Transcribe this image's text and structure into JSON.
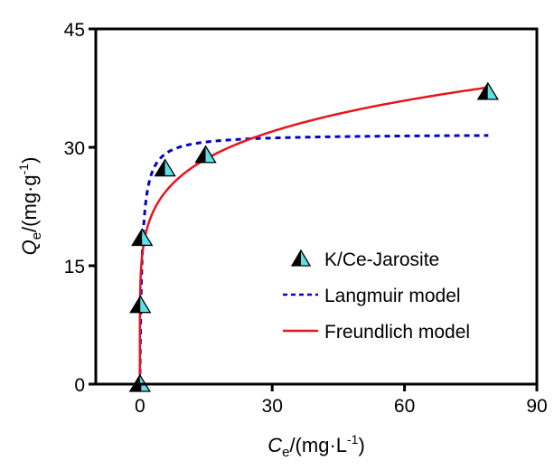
{
  "chart_data": {
    "type": "scatter",
    "title": "",
    "xlabel": {
      "main": "C",
      "sub": "e",
      "unit": "/(mg·L",
      "sup": "-1",
      "close": ")"
    },
    "ylabel": {
      "main": "Q",
      "sub": "e",
      "unit": "/(mg·g",
      "sup": "-1",
      "close": ")"
    },
    "xlim": [
      -10,
      90
    ],
    "ylim": [
      0,
      45
    ],
    "xticks": [
      0,
      30,
      60,
      90
    ],
    "yticks": [
      0,
      15,
      30,
      45
    ],
    "xtick_labels": [
      "0",
      "30",
      "60",
      "90"
    ],
    "ytick_labels": [
      "0",
      "15",
      "30",
      "45"
    ],
    "grid": false,
    "legend_position": "bottom-right",
    "series": [
      {
        "name": "K/Ce-Jarosite",
        "kind": "markers",
        "marker": "half-filled-triangle",
        "colors": {
          "left": "#000000",
          "right": "#5ce0e6",
          "edge": "#000000"
        },
        "x": [
          0,
          0.1,
          0.5,
          5.7,
          14.9,
          78.9
        ],
        "y": [
          0,
          10,
          18.5,
          27.3,
          29,
          37
        ]
      },
      {
        "name": "Langmuir model",
        "kind": "line",
        "style": "dashed",
        "color": "#0000cc",
        "model": "Q = Qm*K*C/(1+K*C)",
        "params": {
          "Qm": 31.7,
          "K": 2.0
        },
        "x_range": [
          0,
          79
        ]
      },
      {
        "name": "Freundlich model",
        "kind": "line",
        "style": "solid",
        "color": "#e8141c",
        "model": "Q = Kf*C^(1/n)",
        "params": {
          "Kf": 18.2,
          "inv_n": 0.166
        },
        "x_range": [
          0,
          79
        ]
      }
    ]
  }
}
